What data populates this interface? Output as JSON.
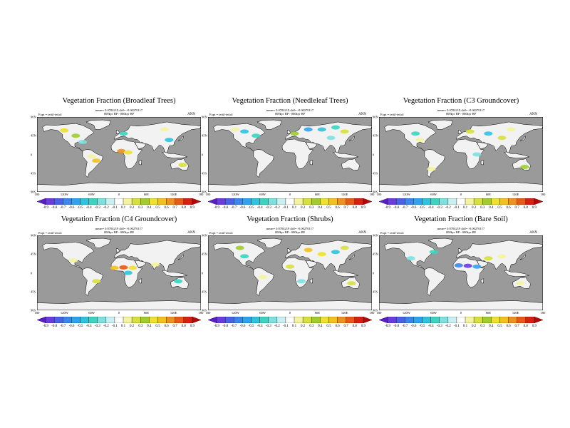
{
  "panels": [
    {
      "title": "Vegetation Fraction (Broadleaf Trees)",
      "stats": "mean= 0.0704219 diff= -0.00270117",
      "period": "000kyr BP - 000kyr BP",
      "expt": "Expt = teiiil-teiia1",
      "season": "ANN",
      "anomalies": [
        {
          "lon": -95,
          "lat": 45,
          "v": 0.4
        },
        {
          "lon": -80,
          "lat": 30,
          "v": -0.2
        },
        {
          "lon": -60,
          "lat": -5,
          "v": 0.2
        },
        {
          "lon": -50,
          "lat": -15,
          "v": 0.6
        },
        {
          "lon": 5,
          "lat": 8,
          "v": 0.7
        },
        {
          "lon": 20,
          "lat": 5,
          "v": 0.5
        },
        {
          "lon": 10,
          "lat": 50,
          "v": -0.3
        },
        {
          "lon": 100,
          "lat": 60,
          "v": 0.2
        },
        {
          "lon": 110,
          "lat": 35,
          "v": -0.4
        },
        {
          "lon": 140,
          "lat": -25,
          "v": 0.3
        },
        {
          "lon": -120,
          "lat": 58,
          "v": 0.5
        }
      ]
    },
    {
      "title": "Vegetation Fraction (Needleleaf Trees)",
      "stats": "mean= 0.0704219 diff= -0.00270117",
      "period": "000kyr BP - 000kyr BP",
      "expt": "Expt = teiiil-teiia1",
      "season": "ANN",
      "anomalies": [
        {
          "lon": -100,
          "lat": 55,
          "v": -0.4
        },
        {
          "lon": -75,
          "lat": 45,
          "v": -0.3
        },
        {
          "lon": 40,
          "lat": 60,
          "v": -0.5
        },
        {
          "lon": 70,
          "lat": 60,
          "v": -0.4
        },
        {
          "lon": 100,
          "lat": 65,
          "v": -0.3
        },
        {
          "lon": 120,
          "lat": 55,
          "v": 0.3
        },
        {
          "lon": 10,
          "lat": 50,
          "v": 0.4
        },
        {
          "lon": 90,
          "lat": 40,
          "v": -0.2
        },
        {
          "lon": -120,
          "lat": 60,
          "v": 0.2
        }
      ]
    },
    {
      "title": "Vegetation Fraction (C3 Groundcover)",
      "stats": "mean= 0.0704219 diff= -0.00270117",
      "period": "000kyr BP - 000kyr BP",
      "expt": "Expt = teiiil-teiia1",
      "season": "ANN",
      "anomalies": [
        {
          "lon": -100,
          "lat": 50,
          "v": -0.3
        },
        {
          "lon": -90,
          "lat": 35,
          "v": 0.2
        },
        {
          "lon": 20,
          "lat": 55,
          "v": 0.3
        },
        {
          "lon": 60,
          "lat": 50,
          "v": -0.4
        },
        {
          "lon": 90,
          "lat": 40,
          "v": 0.3
        },
        {
          "lon": 110,
          "lat": 60,
          "v": 0.2
        },
        {
          "lon": -65,
          "lat": -35,
          "v": 0.2
        },
        {
          "lon": 140,
          "lat": -30,
          "v": 0.4
        },
        {
          "lon": 35,
          "lat": 0,
          "v": -0.2
        }
      ]
    },
    {
      "title": "Vegetation Fraction (C4 Groundcover)",
      "stats": "mean= 0.0704219 diff= -0.00270117",
      "period": "000kyr BP - 000kyr BP",
      "expt": "Expt = teiiil-teiia1",
      "season": "ANN",
      "anomalies": [
        {
          "lon": -10,
          "lat": 12,
          "v": 0.6
        },
        {
          "lon": 10,
          "lat": 13,
          "v": 0.8
        },
        {
          "lon": 30,
          "lat": 12,
          "v": 0.5
        },
        {
          "lon": -50,
          "lat": -20,
          "v": 0.3
        },
        {
          "lon": 20,
          "lat": 0,
          "v": -0.4
        },
        {
          "lon": 80,
          "lat": 20,
          "v": 0.2
        },
        {
          "lon": 130,
          "lat": -20,
          "v": -0.3
        },
        {
          "lon": -100,
          "lat": 30,
          "v": 0.2
        }
      ]
    },
    {
      "title": "Vegetation Fraction (Shrubs)",
      "stats": "mean= 0.0704219 diff= -0.00270117",
      "period": "000kyr BP - 000kyr BP",
      "expt": "Expt = teiiil-teiia1",
      "season": "ANN",
      "anomalies": [
        {
          "lon": -110,
          "lat": 60,
          "v": 0.4
        },
        {
          "lon": -100,
          "lat": 40,
          "v": -0.3
        },
        {
          "lon": 40,
          "lat": 55,
          "v": 0.6
        },
        {
          "lon": 70,
          "lat": 45,
          "v": 0.5
        },
        {
          "lon": 100,
          "lat": 50,
          "v": -0.4
        },
        {
          "lon": 120,
          "lat": 60,
          "v": 0.3
        },
        {
          "lon": 0,
          "lat": 15,
          "v": 0.3
        },
        {
          "lon": 25,
          "lat": -20,
          "v": -0.2
        },
        {
          "lon": -60,
          "lat": -10,
          "v": 0.2
        },
        {
          "lon": 135,
          "lat": -25,
          "v": 0.3
        }
      ]
    },
    {
      "title": "Vegetation Fraction (Bare Soil)",
      "stats": "mean= 0.0704219 diff= -0.00270117",
      "period": "000kyr BP - 000kyr BP",
      "expt": "Expt = teiiil-teiia1",
      "season": "ANN",
      "anomalies": [
        {
          "lon": -5,
          "lat": 18,
          "v": -0.6
        },
        {
          "lon": 15,
          "lat": 17,
          "v": -0.8
        },
        {
          "lon": 35,
          "lat": 15,
          "v": -0.5
        },
        {
          "lon": 60,
          "lat": 35,
          "v": 0.3
        },
        {
          "lon": 90,
          "lat": 40,
          "v": 0.2
        },
        {
          "lon": -110,
          "lat": 35,
          "v": -0.2
        },
        {
          "lon": 130,
          "lat": -25,
          "v": 0.2
        },
        {
          "lon": -60,
          "lat": 50,
          "v": -0.3
        }
      ]
    }
  ],
  "lon_labels": [
    "180",
    "120W",
    "60W",
    "0",
    "60E",
    "120E",
    "180"
  ],
  "lat_labels": [
    "90N",
    "45N",
    "0",
    "45S",
    "90S"
  ],
  "colorbar": {
    "labels": [
      "-0.9",
      "-0.8",
      "-0.7",
      "-0.6",
      "-0.5",
      "-0.4",
      "-0.3",
      "-0.2",
      "-0.1",
      "0.1",
      "0.2",
      "0.3",
      "0.4",
      "0.5",
      "0.6",
      "0.7",
      "0.8",
      "0.9"
    ],
    "colors": [
      "#5a1ec8",
      "#6a3ce0",
      "#4a60ea",
      "#3c84f0",
      "#2ea4f0",
      "#2ec4e0",
      "#3cd4c0",
      "#80e0e0",
      "#c8f0f0",
      "#ffffff",
      "#f4f4a0",
      "#d8e040",
      "#a0cc30",
      "#f0e030",
      "#f4c020",
      "#f09020",
      "#e85818",
      "#d82010",
      "#b40808"
    ]
  },
  "colors": {
    "ocean": "#9a9a9a",
    "land": "#f2f2f2",
    "coast": "#000000"
  }
}
